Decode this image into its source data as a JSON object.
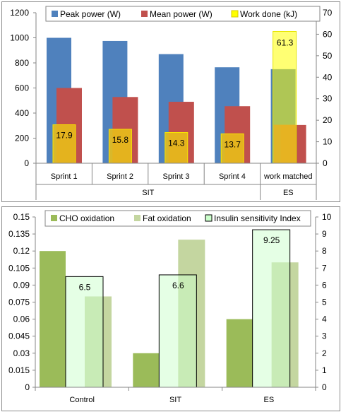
{
  "chart_data": [
    {
      "type": "bar",
      "categories": [
        "Sprint 1",
        "Sprint 2",
        "Sprint 3",
        "Sprint 4",
        "work matched"
      ],
      "groups": [
        {
          "label": "SIT",
          "categories": [
            "Sprint 1",
            "Sprint 2",
            "Sprint 3",
            "Sprint 4"
          ]
        },
        {
          "label": "ES",
          "categories": [
            "work matched"
          ]
        }
      ],
      "series": [
        {
          "name": "Peak power (W)",
          "axis": "left",
          "color": "#4F81BD",
          "values": [
            1000,
            975,
            870,
            765,
            750
          ]
        },
        {
          "name": "Mean power (W)",
          "axis": "left",
          "color": "#C0504D",
          "values": [
            600,
            528,
            490,
            455,
            305
          ]
        },
        {
          "name": "Work done (kJ)",
          "axis": "right",
          "color": "#FFFF00",
          "values": [
            17.9,
            15.8,
            14.3,
            13.7,
            61.3
          ],
          "data_labels": [
            "17.9",
            "15.8",
            "14.3",
            "13.7",
            "61.3"
          ]
        }
      ],
      "yticks_left": [
        "0",
        "200",
        "400",
        "600",
        "800",
        "1000",
        "1200"
      ],
      "yticks_right": [
        "0",
        "10",
        "20",
        "30",
        "40",
        "50",
        "60",
        "70"
      ],
      "ylim_left": [
        0,
        1200
      ],
      "ylim_right": [
        0,
        70
      ],
      "legend_position": "top",
      "grid": false
    },
    {
      "type": "bar",
      "categories": [
        "Control",
        "SIT",
        "ES"
      ],
      "series": [
        {
          "name": "CHO oxidation",
          "axis": "left",
          "color": "#9BBB59",
          "values": [
            0.12,
            0.03,
            0.06
          ]
        },
        {
          "name": "Fat oxidation",
          "axis": "left",
          "color": "#C4D6A0",
          "values": [
            0.08,
            0.13,
            0.11
          ]
        },
        {
          "name": "Insulin sensitivity Index",
          "axis": "right",
          "color": "#CCFFCC",
          "values": [
            6.5,
            6.6,
            9.25
          ],
          "data_labels": [
            "6.5",
            "6.6",
            "9.25"
          ]
        }
      ],
      "yticks_left": [
        "0",
        "0.015",
        "0.03",
        "0.045",
        "0.06",
        "0.075",
        "0.09",
        "0.105",
        "0.12",
        "0.135",
        "0.15"
      ],
      "yticks_right": [
        "0",
        "1",
        "2",
        "3",
        "4",
        "5",
        "6",
        "7",
        "8",
        "9",
        "10"
      ],
      "ylim_left": [
        0,
        0.15
      ],
      "ylim_right": [
        0,
        10
      ],
      "legend_position": "top",
      "grid": false
    }
  ]
}
